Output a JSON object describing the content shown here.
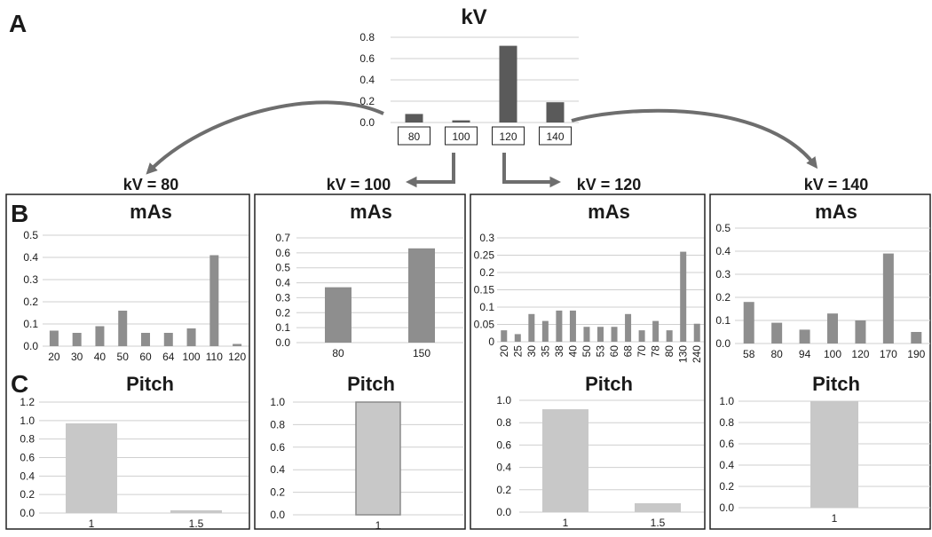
{
  "labels": {
    "panel_a": "A",
    "panel_b": "B",
    "panel_c": "C"
  },
  "colors": {
    "kv_bar": "#5a5a5a",
    "mas_bar": "#8e8e8e",
    "pitch_bar": "#c8c8c8",
    "grid": "#cfcfcf",
    "arrow": "#6e6e6e"
  },
  "groups": [
    {
      "label": "kV = 80"
    },
    {
      "label": "kV = 100"
    },
    {
      "label": "kV = 120"
    },
    {
      "label": "kV = 140"
    }
  ],
  "chart_data": [
    {
      "id": "kv",
      "type": "bar",
      "title": "kV",
      "categories": [
        "80",
        "100",
        "120",
        "140"
      ],
      "values": [
        0.08,
        0.02,
        0.72,
        0.19
      ],
      "ylim": [
        0,
        0.8
      ],
      "yticks": [
        "0.0",
        "0.2",
        "0.4",
        "0.6",
        "0.8"
      ],
      "grid": true
    },
    {
      "id": "mas80",
      "type": "bar",
      "title": "mAs",
      "categories": [
        "20",
        "30",
        "40",
        "50",
        "60",
        "64",
        "100",
        "110",
        "120"
      ],
      "values": [
        0.07,
        0.06,
        0.09,
        0.16,
        0.06,
        0.06,
        0.08,
        0.41,
        0.01
      ],
      "ylim": [
        0,
        0.5
      ],
      "yticks": [
        "0.0",
        "0.1",
        "0.2",
        "0.3",
        "0.4",
        "0.5"
      ],
      "grid": true
    },
    {
      "id": "mas100",
      "type": "bar",
      "title": "mAs",
      "categories": [
        "80",
        "150"
      ],
      "values": [
        0.37,
        0.63
      ],
      "ylim": [
        0,
        0.7
      ],
      "yticks": [
        "0.0",
        "0.1",
        "0.2",
        "0.3",
        "0.4",
        "0.5",
        "0.6",
        "0.7"
      ],
      "grid": true
    },
    {
      "id": "mas120",
      "type": "bar",
      "title": "mAs",
      "categories": [
        "20",
        "25",
        "30",
        "35",
        "38",
        "40",
        "50",
        "53",
        "60",
        "68",
        "70",
        "78",
        "80",
        "130",
        "240"
      ],
      "values": [
        0.033,
        0.022,
        0.08,
        0.06,
        0.09,
        0.09,
        0.043,
        0.043,
        0.043,
        0.08,
        0.033,
        0.06,
        0.033,
        0.26,
        0.052
      ],
      "ylim": [
        0,
        0.3
      ],
      "yticks": [
        "0",
        "0.05",
        "0.1",
        "0.15",
        "0.2",
        "0.25",
        "0.3"
      ],
      "grid": true
    },
    {
      "id": "mas140",
      "type": "bar",
      "title": "mAs",
      "categories": [
        "58",
        "80",
        "94",
        "100",
        "120",
        "170",
        "190"
      ],
      "values": [
        0.18,
        0.09,
        0.06,
        0.13,
        0.1,
        0.39,
        0.05
      ],
      "ylim": [
        0,
        0.5
      ],
      "yticks": [
        "0.0",
        "0.1",
        "0.2",
        "0.3",
        "0.4",
        "0.5"
      ],
      "grid": true
    },
    {
      "id": "pitch80",
      "type": "bar",
      "title": "Pitch",
      "categories": [
        "1",
        "1.5"
      ],
      "values": [
        0.97,
        0.03
      ],
      "ylim": [
        0,
        1.2
      ],
      "yticks": [
        "0.0",
        "0.2",
        "0.4",
        "0.6",
        "0.8",
        "1.0",
        "1.2"
      ],
      "grid": true
    },
    {
      "id": "pitch100",
      "type": "bar",
      "title": "Pitch",
      "categories": [
        "1"
      ],
      "values": [
        1.0
      ],
      "ylim": [
        0,
        1.0
      ],
      "yticks": [
        "0.0",
        "0.2",
        "0.4",
        "0.6",
        "0.8",
        "1.0"
      ],
      "grid": true
    },
    {
      "id": "pitch120",
      "type": "bar",
      "title": "Pitch",
      "categories": [
        "1",
        "1.5"
      ],
      "values": [
        0.92,
        0.08
      ],
      "ylim": [
        0,
        1.0
      ],
      "yticks": [
        "0.0",
        "0.2",
        "0.4",
        "0.6",
        "0.8",
        "1.0"
      ],
      "grid": true
    },
    {
      "id": "pitch140",
      "type": "bar",
      "title": "Pitch",
      "categories": [
        "1"
      ],
      "values": [
        1.0
      ],
      "ylim": [
        0,
        1.0
      ],
      "yticks": [
        "0.0",
        "0.2",
        "0.4",
        "0.6",
        "0.8",
        "1.0"
      ],
      "grid": true
    }
  ]
}
